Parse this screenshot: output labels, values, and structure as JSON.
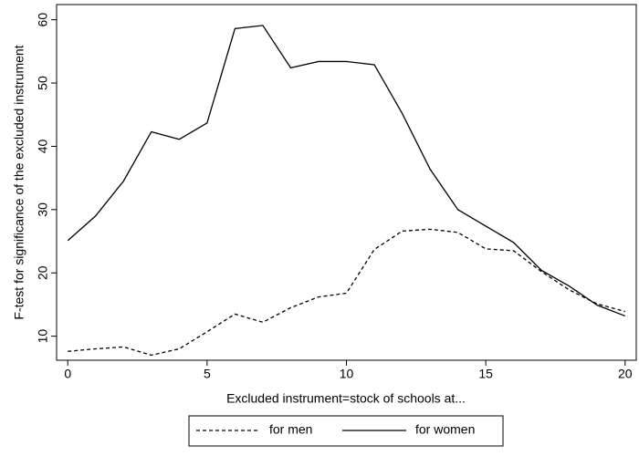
{
  "chart_data": {
    "type": "line",
    "x_label": "Excluded instrument=stock of schools at...",
    "y_label": "F-test for significance of the excluded instrument",
    "x": [
      0,
      1,
      2,
      3,
      4,
      5,
      6,
      7,
      8,
      9,
      10,
      11,
      12,
      13,
      14,
      15,
      16,
      17,
      18,
      19,
      20
    ],
    "series": [
      {
        "name": "for men",
        "color": "#000000",
        "dash": "dashed",
        "values": [
          7.6,
          8.0,
          8.3,
          7.0,
          8.0,
          10.7,
          13.5,
          12.2,
          14.5,
          16.2,
          16.8,
          23.7,
          26.6,
          26.9,
          26.4,
          23.8,
          23.5,
          20.2,
          17.3,
          15.1,
          13.9
        ]
      },
      {
        "name": "for women",
        "color": "#000000",
        "dash": "solid",
        "values": [
          25.1,
          29.0,
          34.5,
          42.3,
          41.1,
          43.7,
          58.6,
          59.1,
          52.4,
          53.4,
          53.4,
          52.9,
          45.2,
          36.4,
          30.0,
          27.4,
          24.8,
          20.4,
          17.9,
          14.9,
          13.2
        ]
      }
    ],
    "xlim": [
      -0.4,
      20.4
    ],
    "xticks": [
      0,
      5,
      10,
      15,
      20
    ],
    "ylim": [
      6.2,
      62.4
    ],
    "yticks": [
      10,
      20,
      30,
      40,
      50,
      60
    ],
    "grid": false,
    "legend": "bottom"
  }
}
